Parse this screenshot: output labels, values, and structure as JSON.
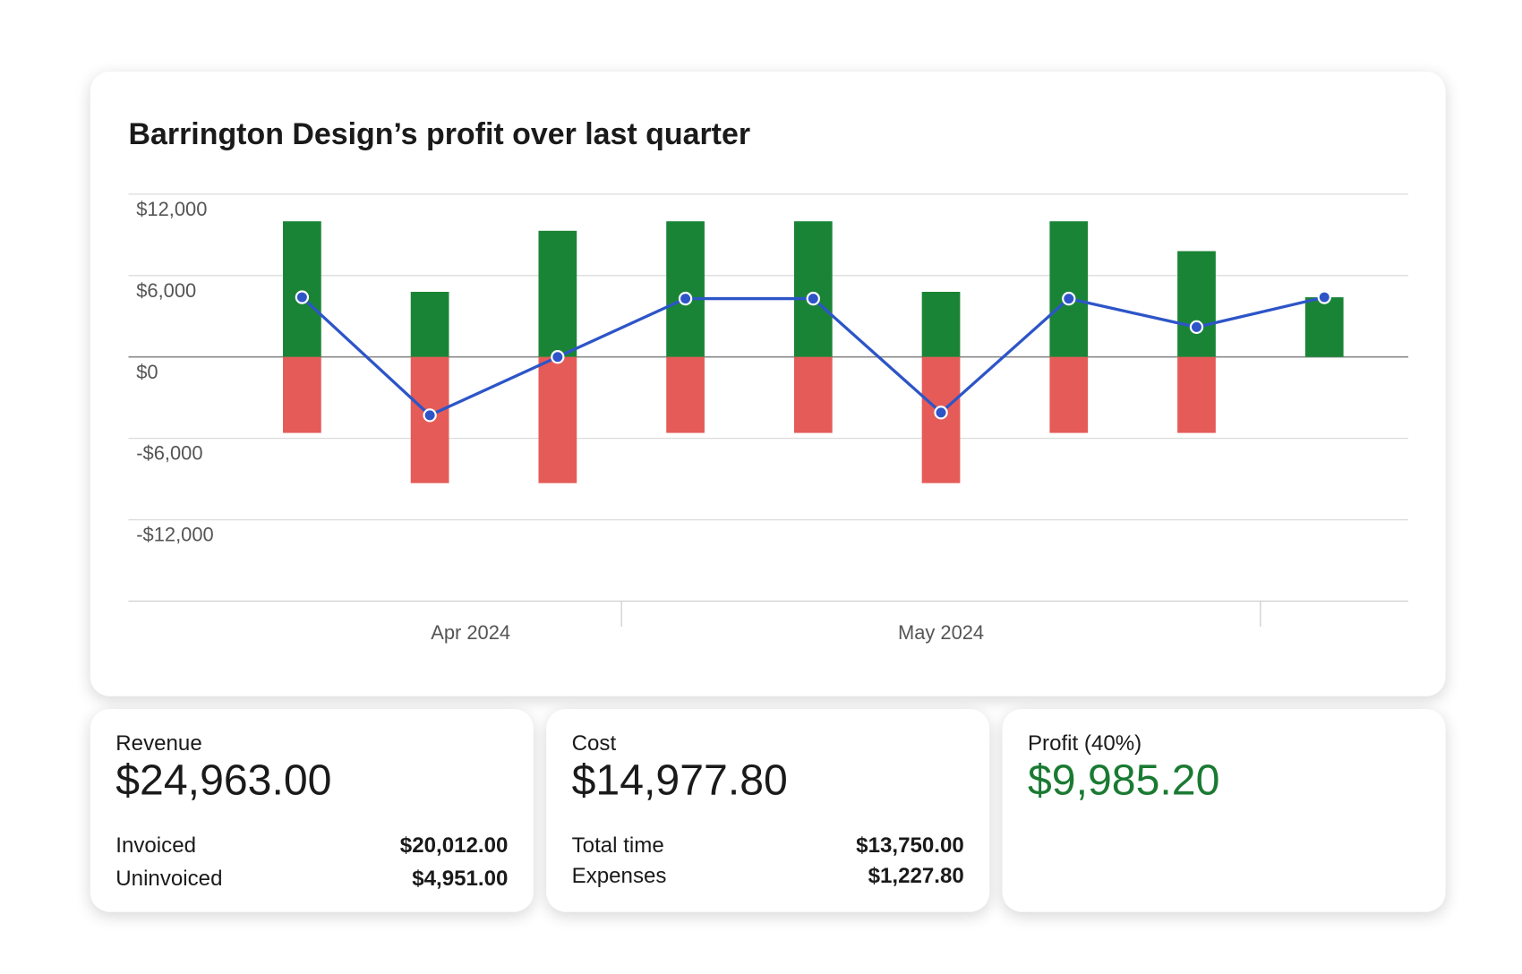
{
  "chart_data": {
    "type": "bar",
    "title": "Barrington Design’s profit over last quarter",
    "categories": [
      null,
      null,
      null,
      null,
      null,
      null,
      null,
      null,
      null
    ],
    "x_group_labels": [
      "Apr 2024",
      "May 2024"
    ],
    "series": [
      {
        "type": "bar",
        "color": "#1a8436",
        "values": [
          10000,
          4800,
          9300,
          10000,
          10000,
          4800,
          10000,
          7800,
          4400
        ]
      },
      {
        "type": "bar",
        "color": "#e55b57",
        "values": [
          -5600,
          -9300,
          -9300,
          -5600,
          -5600,
          -9300,
          -5600,
          -5600,
          0
        ]
      },
      {
        "type": "line",
        "color": "#2d55c8",
        "values": [
          4400,
          -4300,
          0,
          4300,
          4300,
          -4100,
          4300,
          2200,
          4400
        ]
      }
    ],
    "ylim": [
      -18000,
      12000
    ],
    "yticks": [
      {
        "value": -12000,
        "label": "-$12,000"
      },
      {
        "value": -6000,
        "label": "-$6,000"
      },
      {
        "value": 0,
        "label": "$0"
      },
      {
        "value": 6000,
        "label": "$6,000"
      },
      {
        "value": 12000,
        "label": "$12,000"
      }
    ],
    "grid": true
  },
  "summary_cards": [
    {
      "label": "Revenue",
      "amount": "$24,963.00",
      "rows": [
        {
          "label": "Invoiced",
          "amount": "$20,012.00"
        },
        {
          "label": "Uninvoiced",
          "amount": "$4,951.00"
        }
      ]
    },
    {
      "label": "Cost",
      "amount": "$14,977.80",
      "rows": [
        {
          "label": "Total time",
          "amount": "$13,750.00"
        },
        {
          "label": "Expenses",
          "amount": "$1,227.80"
        }
      ]
    },
    {
      "label": "Profit (40%)",
      "amount": "$9,985.20"
    }
  ]
}
